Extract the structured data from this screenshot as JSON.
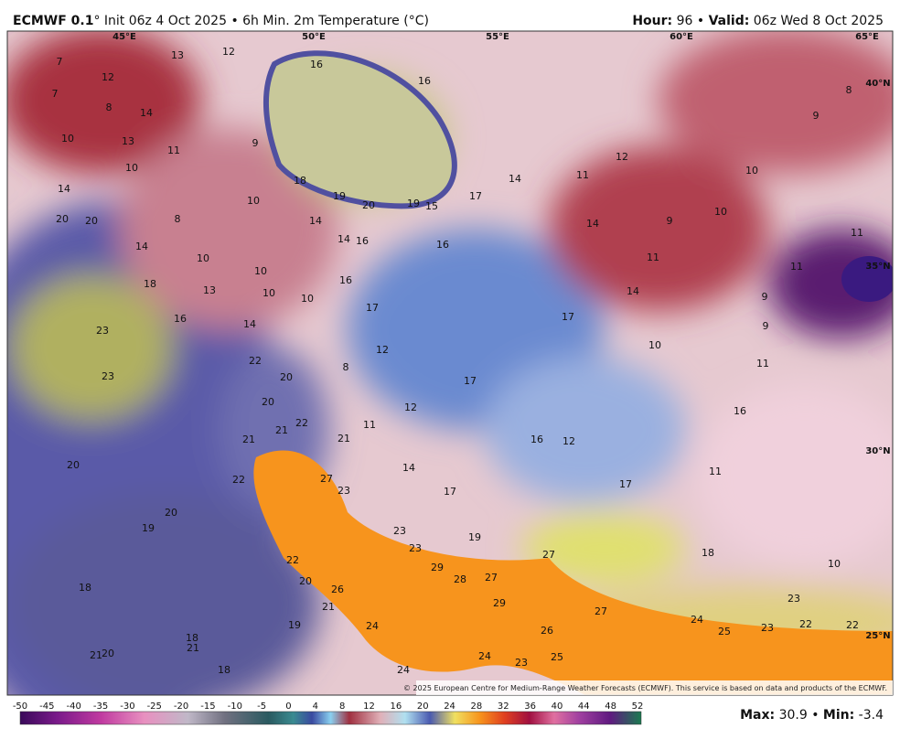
{
  "header": {
    "model": "ECMWF 0.1",
    "title_rest": "° Init 06z 4 Oct 2025 • 6h Min. 2m Temperature (°C)",
    "hour_label": "Hour:",
    "hour": "96",
    "sep": "•",
    "valid_label": "Valid:",
    "valid": "06z Wed 8 Oct 2025"
  },
  "map": {
    "grid_labels": [
      "45°E",
      "50°E",
      "55°E",
      "60°E",
      "65°E",
      "40°N",
      "35°N",
      "30°N",
      "25°N"
    ],
    "temperatures": [
      7,
      12,
      7,
      8,
      10,
      13,
      14,
      10,
      11,
      9,
      14,
      20,
      20,
      14,
      8,
      10,
      10,
      10,
      10,
      13,
      10,
      18,
      16,
      23,
      23,
      14,
      14,
      14,
      16,
      16,
      17,
      12,
      8,
      22,
      20,
      20,
      22,
      21,
      21,
      21,
      11,
      12,
      18,
      19,
      20,
      19,
      15,
      17,
      16,
      14,
      11,
      12,
      10,
      9,
      14,
      10,
      11,
      14,
      17,
      10,
      17,
      16,
      12,
      14,
      17,
      17,
      11,
      16,
      11,
      9,
      9,
      11,
      11,
      9,
      8,
      16,
      16,
      12,
      13,
      20,
      20,
      19,
      18,
      18,
      21,
      21,
      20,
      18,
      19,
      20,
      22,
      27,
      23,
      22,
      23,
      23,
      29,
      28,
      27,
      29,
      19,
      27,
      27,
      24,
      25,
      23,
      22,
      22,
      23,
      10,
      18,
      24,
      26,
      21,
      24,
      23,
      25,
      24,
      26
    ],
    "credit": "© 2025 European Centre for Medium-Range Weather Forecasts (ECMWF). This service is based on data and products of the ECMWF."
  },
  "colorbar": {
    "ticks": [
      -50,
      -45,
      -40,
      -35,
      -30,
      -25,
      -20,
      -15,
      -10,
      -5,
      0,
      4,
      8,
      12,
      16,
      20,
      24,
      28,
      32,
      36,
      40,
      44,
      48,
      52
    ]
  },
  "footer": {
    "max_label": "Max:",
    "max": 30.9,
    "sep": "•",
    "min_label": "Min:",
    "min": -3.4
  }
}
